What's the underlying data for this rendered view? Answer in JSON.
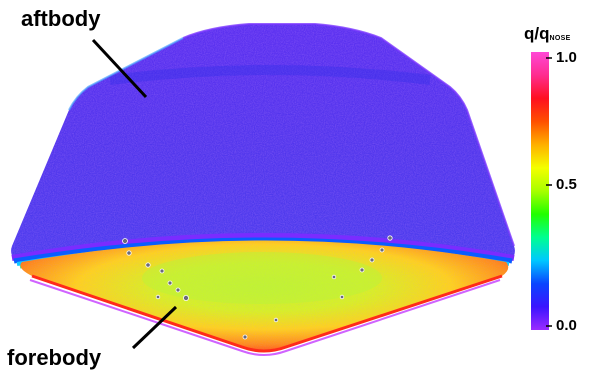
{
  "labels": {
    "aftbody": "aftbody",
    "forebody": "forebody"
  },
  "colorbar": {
    "title_main": "q/q",
    "title_sub": "NOSE",
    "ticks": [
      "1.0",
      "0.5",
      "0.0"
    ],
    "colormap": [
      "#9b2bff",
      "#3b14ff",
      "#0a45ff",
      "#00c8ff",
      "#00ff90",
      "#22ff00",
      "#a8ff00",
      "#f4ff00",
      "#ffb000",
      "#ff5000",
      "#ff1020",
      "#ff2d8f",
      "#ff48d6"
    ]
  },
  "colors": {
    "aftbody_surface": "#5236ee",
    "forebody_center": "#c6f52a",
    "forebody_edge": "#ff8c1a",
    "shoulder_ring": "#18c7ff"
  }
}
